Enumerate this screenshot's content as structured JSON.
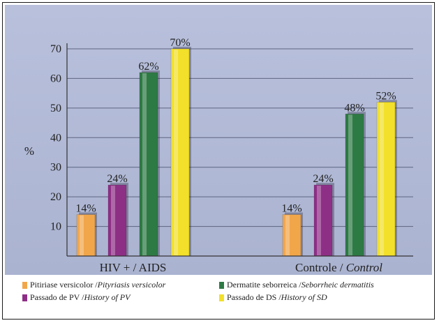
{
  "chart_data": {
    "type": "bar",
    "ylabel": "%",
    "ylim": [
      0,
      70
    ],
    "y_ticks": [
      "10",
      "20",
      "30",
      "40",
      "50",
      "60",
      "70"
    ],
    "grid": true,
    "legend_position": "bottom",
    "background_color": "#b4bcd8",
    "groups": [
      {
        "label": "HIV + / AIDS",
        "italic_part": ""
      },
      {
        "label": "Controle / ",
        "italic_part": "Control"
      }
    ],
    "series": [
      {
        "name": "Pitiriase versicolor / ",
        "name_italic": "Pityriasis versicolor",
        "color": "#f2a64a",
        "values": [
          14,
          14
        ],
        "labels": [
          "14%",
          "14%"
        ]
      },
      {
        "name": "Passado de PV / ",
        "name_italic": "History of PV",
        "color": "#8e2f86",
        "values": [
          24,
          24
        ],
        "labels": [
          "24%",
          "24%"
        ]
      },
      {
        "name": "Dermatite seborreica / ",
        "name_italic": "Seborrheic dermatitis",
        "color": "#2e7a45",
        "values": [
          62,
          48
        ],
        "labels": [
          "62%",
          "48%"
        ]
      },
      {
        "name": "Passado de DS / ",
        "name_italic": "History of SD",
        "color": "#f2e02a",
        "values": [
          70,
          52
        ],
        "labels": [
          "70%",
          "52%"
        ]
      }
    ]
  }
}
